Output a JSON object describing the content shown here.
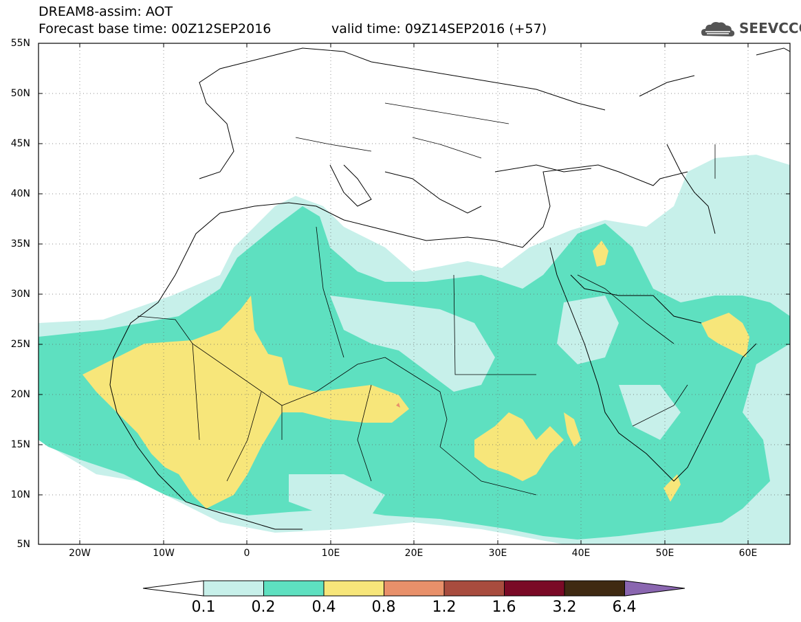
{
  "header": {
    "title_line1": "DREAM8-assim: AOT",
    "title_line2": "Forecast base time: 00Z12SEP2016",
    "valid_time": "valid time: 09Z14SEP2016 (+57)",
    "logo_text": "SEEVCCC"
  },
  "map": {
    "lon_range": [
      -25,
      65
    ],
    "lat_range": [
      5,
      55
    ],
    "lat_labels": [
      "55N",
      "50N",
      "45N",
      "40N",
      "35N",
      "30N",
      "25N",
      "20N",
      "15N",
      "10N",
      "5N"
    ],
    "lon_labels": [
      "20W",
      "10W",
      "0",
      "10E",
      "20E",
      "30E",
      "40E",
      "50E",
      "60E"
    ],
    "grid": "dotted"
  },
  "colorbar": {
    "labels": [
      "0.1",
      "0.2",
      "0.4",
      "0.8",
      "1.2",
      "1.6",
      "3.2",
      "6.4"
    ],
    "colors": [
      "#ffffff",
      "#c7f0ea",
      "#5ee0c0",
      "#f7e67a",
      "#e8906a",
      "#a84c3e",
      "#7a0a26",
      "#3f2a12",
      "#8a66b0"
    ]
  }
}
